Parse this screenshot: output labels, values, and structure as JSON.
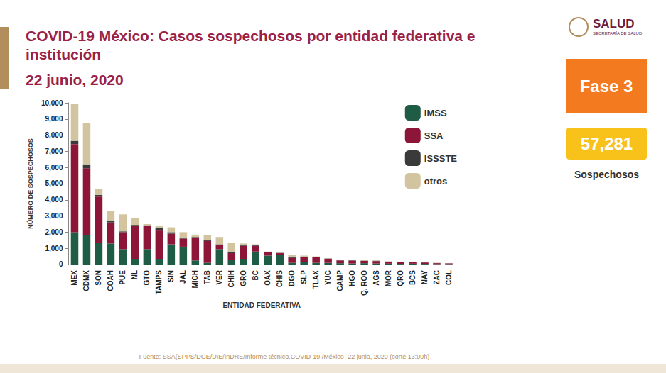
{
  "header": {
    "logo": "SALUD",
    "logo_subtitle": "SECRETARÍA DE SALUD",
    "phase": "Fase 3",
    "total": "57,281",
    "total_label": "Sospechosos",
    "source": "Fuente: SSA(SPPS/DGE/DIE/InDRE/Informe técnico.COVID-19 /México- 22 junio, 2020 (corte 13:00h)"
  },
  "chart_data": {
    "type": "bar",
    "title": "COVID-19 México: Casos sospechosos por entidad federativa e institución",
    "subtitle": "22 junio, 2020",
    "x_label": "ENTIDAD FEDERATIVA",
    "y_label": "NÚMERO DE SOSPECHOSOS",
    "categories": [
      "MEX",
      "CDMX",
      "SON",
      "COAH",
      "PUE",
      "NL",
      "GTO",
      "TAMPS",
      "SIN",
      "JAL",
      "MICH",
      "TAB",
      "VER",
      "CHIH",
      "GRO",
      "BC",
      "OAX",
      "CHIS",
      "DGO",
      "SLP",
      "TLAX",
      "YUC",
      "CAMP",
      "HGO",
      "Q. ROO",
      "AGS",
      "MOR",
      "QRO",
      "BCS",
      "NAY",
      "ZAC",
      "COL"
    ],
    "series": [
      {
        "name": "IMSS",
        "color": "#1f5c45",
        "values": [
          2000,
          1800,
          1350,
          1300,
          950,
          350,
          950,
          350,
          1250,
          1100,
          250,
          100,
          950,
          300,
          350,
          800,
          550,
          600,
          100,
          150,
          100,
          100,
          80,
          60,
          80,
          60,
          50,
          40,
          50,
          40,
          20,
          20
        ]
      },
      {
        "name": "SSA",
        "color": "#8c1538",
        "values": [
          5450,
          4150,
          2850,
          1300,
          1050,
          2050,
          1450,
          1750,
          650,
          500,
          1400,
          1350,
          250,
          400,
          800,
          350,
          200,
          100,
          300,
          300,
          350,
          250,
          170,
          180,
          150,
          150,
          120,
          110,
          90,
          80,
          60,
          50
        ]
      },
      {
        "name": "ISSSTE",
        "color": "#3a3a3a",
        "values": [
          200,
          250,
          100,
          100,
          50,
          50,
          30,
          150,
          100,
          50,
          50,
          50,
          50,
          100,
          50,
          50,
          20,
          20,
          50,
          30,
          20,
          20,
          10,
          20,
          10,
          20,
          10,
          10,
          10,
          10,
          10,
          10
        ]
      },
      {
        "name": "otros",
        "color": "#d3c4a0",
        "values": [
          2300,
          2550,
          350,
          600,
          1050,
          400,
          70,
          150,
          300,
          350,
          150,
          300,
          450,
          550,
          100,
          50,
          30,
          30,
          150,
          70,
          30,
          30,
          40,
          40,
          40,
          30,
          20,
          20,
          20,
          20,
          20,
          10
        ]
      }
    ],
    "stacked": true,
    "ylim": [
      0,
      10000
    ],
    "yticks": [
      0,
      1000,
      2000,
      3000,
      4000,
      5000,
      6000,
      7000,
      8000,
      9000,
      10000
    ],
    "grid": false,
    "legend": "upper right"
  }
}
